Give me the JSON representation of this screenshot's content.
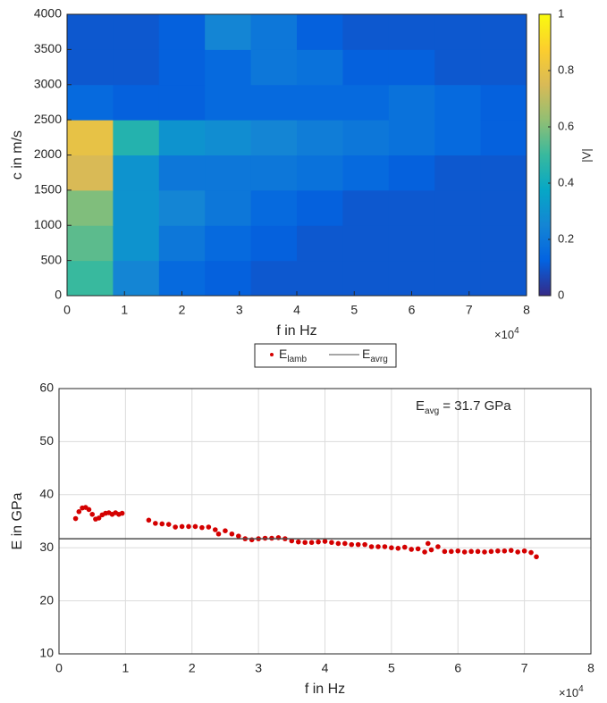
{
  "chart_data": [
    {
      "type": "heatmap",
      "xlabel": "f in Hz",
      "ylabel": "c in m/s",
      "x_multiplier": {
        "base": "×10",
        "exponent": "4"
      },
      "xlim": [
        0,
        80000
      ],
      "ylim": [
        0,
        4000
      ],
      "xticks": [
        0,
        {
          "value": 10000,
          "label": "1"
        },
        {
          "value": 20000,
          "label": "2"
        },
        {
          "value": 30000,
          "label": "3"
        },
        {
          "value": 40000,
          "label": "4"
        },
        {
          "value": 50000,
          "label": "5"
        },
        {
          "value": 60000,
          "label": "6"
        },
        {
          "value": 70000,
          "label": "7"
        },
        {
          "value": 80000,
          "label": "8"
        }
      ],
      "yticks": [
        0,
        500,
        1000,
        1500,
        2000,
        2500,
        3000,
        3500,
        4000
      ],
      "x_edges": [
        0,
        8000,
        16000,
        24000,
        32000,
        40000,
        48000,
        56000,
        64000,
        72000,
        80000
      ],
      "y_edges": [
        0,
        500,
        1000,
        1500,
        2000,
        2500,
        3000,
        3500,
        4000
      ],
      "z": [
        [
          0.5,
          0.25,
          0.15,
          0.12,
          0.1,
          0.1,
          0.1,
          0.1,
          0.1,
          0.1
        ],
        [
          0.55,
          0.3,
          0.2,
          0.15,
          0.12,
          0.1,
          0.1,
          0.1,
          0.1,
          0.1
        ],
        [
          0.6,
          0.3,
          0.25,
          0.2,
          0.15,
          0.12,
          0.1,
          0.1,
          0.1,
          0.1
        ],
        [
          0.75,
          0.3,
          0.2,
          0.2,
          0.2,
          0.18,
          0.15,
          0.12,
          0.1,
          0.1
        ],
        [
          0.8,
          0.45,
          0.3,
          0.28,
          0.25,
          0.22,
          0.2,
          0.18,
          0.15,
          0.12
        ],
        [
          0.15,
          0.12,
          0.12,
          0.15,
          0.15,
          0.15,
          0.15,
          0.18,
          0.15,
          0.12
        ],
        [
          0.1,
          0.1,
          0.12,
          0.15,
          0.2,
          0.18,
          0.12,
          0.12,
          0.1,
          0.1
        ],
        [
          0.1,
          0.1,
          0.12,
          0.25,
          0.2,
          0.12,
          0.1,
          0.1,
          0.1,
          0.1
        ]
      ],
      "clim": [
        0,
        1
      ],
      "colorbar_ticks": [
        0,
        0.2,
        0.4,
        0.6,
        0.8,
        1
      ],
      "colorbar_label": "|V|",
      "colormap": [
        "#352a87",
        "#0363e1",
        "#1485d4",
        "#06a7c6",
        "#38b99e",
        "#92bf73",
        "#d9ba56",
        "#fcce2e",
        "#f9fb0e"
      ]
    },
    {
      "type": "scatter",
      "xlabel": "f in Hz",
      "ylabel": "E in GPa",
      "x_multiplier": {
        "base": "×10",
        "exponent": "4"
      },
      "xlim": [
        0,
        80000
      ],
      "ylim": [
        10,
        60
      ],
      "xticks": [
        0,
        {
          "value": 10000,
          "label": "1"
        },
        {
          "value": 20000,
          "label": "2"
        },
        {
          "value": 30000,
          "label": "3"
        },
        {
          "value": 40000,
          "label": "4"
        },
        {
          "value": 50000,
          "label": "5"
        },
        {
          "value": 60000,
          "label": "6"
        },
        {
          "value": 70000,
          "label": "7"
        },
        {
          "value": 80000,
          "label": "8"
        }
      ],
      "yticks": [
        10,
        20,
        30,
        40,
        50,
        60
      ],
      "grid": true,
      "series": [
        {
          "name": "E",
          "name_subscript": "lamb",
          "color": "#d40000",
          "x": [
            2500,
            3000,
            3500,
            4000,
            4500,
            5000,
            5500,
            6000,
            6500,
            7000,
            7500,
            8000,
            8500,
            9000,
            9500,
            13500,
            14500,
            15500,
            16500,
            17500,
            18500,
            19500,
            20500,
            21500,
            22500,
            23500,
            24000,
            25000,
            26000,
            27000,
            28000,
            29000,
            30000,
            31000,
            32000,
            33000,
            34000,
            35000,
            36000,
            37000,
            38000,
            39000,
            40000,
            41000,
            42000,
            43000,
            44000,
            45000,
            46000,
            47000,
            48000,
            49000,
            50000,
            51000,
            52000,
            53000,
            54000,
            55000,
            55500,
            56000,
            57000,
            58000,
            59000,
            60000,
            61000,
            62000,
            63000,
            64000,
            65000,
            66000,
            67000,
            68000,
            69000,
            70000,
            71000,
            71800
          ],
          "values": [
            35.5,
            36.8,
            37.5,
            37.6,
            37.2,
            36.3,
            35.4,
            35.6,
            36.2,
            36.5,
            36.6,
            36.3,
            36.6,
            36.3,
            36.5,
            35.2,
            34.6,
            34.5,
            34.4,
            33.9,
            34.0,
            34.0,
            34.0,
            33.8,
            33.9,
            33.4,
            32.6,
            33.2,
            32.6,
            32.2,
            31.7,
            31.5,
            31.7,
            31.8,
            31.8,
            31.9,
            31.7,
            31.3,
            31.1,
            31.0,
            31.0,
            31.1,
            31.2,
            31.0,
            30.8,
            30.8,
            30.6,
            30.6,
            30.6,
            30.2,
            30.2,
            30.2,
            30.0,
            29.9,
            30.1,
            29.7,
            29.8,
            29.2,
            30.8,
            29.6,
            30.2,
            29.3,
            29.3,
            29.4,
            29.2,
            29.3,
            29.3,
            29.2,
            29.3,
            29.4,
            29.4,
            29.5,
            29.2,
            29.4,
            29.1,
            28.3
          ]
        },
        {
          "name": "E",
          "name_subscript": "avrg",
          "color": "#4d4d4d",
          "value": 31.7
        }
      ],
      "annotation": {
        "text": "E",
        "subscript": "avg",
        "rest": " = 31.7 GPa"
      }
    }
  ]
}
